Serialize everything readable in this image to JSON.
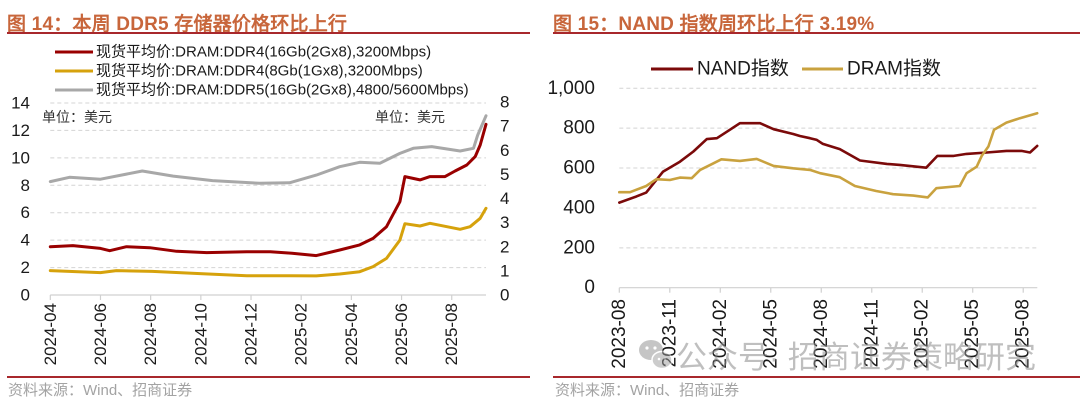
{
  "figures": [
    {
      "title": "图 14：本周 DDR5 存储器价格环比上行",
      "source": "资料来源：Wind、招商证券",
      "unit_left": "单位：美元",
      "unit_right": "单位：美元"
    },
    {
      "title": "图 15：NAND 指数周环比上行 3.19%",
      "source": "资料来源：Wind、招商证券"
    }
  ],
  "watermark": {
    "icon": "wechat-icon",
    "text": "公众号· 招商证券策略研究"
  },
  "chart_data": [
    {
      "type": "line",
      "title": "图 14：本周 DDR5 存储器价格环比上行",
      "xlabel": "",
      "ylabel": "单位：美元",
      "y2label": "单位：美元",
      "grid": true,
      "legend_position": "top-left",
      "xlim": [
        "2024-04-01",
        "2025-09-12"
      ],
      "x_ticks": [
        "2024-04",
        "2024-06",
        "2024-08",
        "2024-10",
        "2024-12",
        "2025-02",
        "2025-04",
        "2025-06",
        "2025-08"
      ],
      "y_left": {
        "lim": [
          0,
          14
        ],
        "ticks": [
          0,
          2,
          4,
          6,
          8,
          10,
          12,
          14
        ],
        "tick_labels": [
          "0",
          "2",
          "4",
          "6",
          "8",
          "10",
          "12",
          "14"
        ]
      },
      "y_right": {
        "lim": [
          0,
          8
        ],
        "ticks": [
          0,
          1,
          2,
          3,
          4,
          5,
          6,
          7,
          8
        ],
        "tick_labels": [
          "0",
          "1",
          "2",
          "3",
          "4",
          "5",
          "6",
          "7",
          "8"
        ]
      },
      "series": [
        {
          "name": "现货平均价:DRAM:DDR4(16Gb(2Gx8),3200Mbps)",
          "axis": "left",
          "color": "#990000",
          "points": [
            [
              "2024-04-01",
              3.52
            ],
            [
              "2024-04-28",
              3.6
            ],
            [
              "2024-05-31",
              3.4
            ],
            [
              "2024-06-12",
              3.23
            ],
            [
              "2024-07-02",
              3.52
            ],
            [
              "2024-07-30",
              3.45
            ],
            [
              "2024-09-02",
              3.19
            ],
            [
              "2024-10-08",
              3.09
            ],
            [
              "2024-11-26",
              3.15
            ],
            [
              "2024-12-24",
              3.16
            ],
            [
              "2025-01-20",
              3.05
            ],
            [
              "2025-02-19",
              2.87
            ],
            [
              "2025-03-17",
              3.28
            ],
            [
              "2025-04-11",
              3.65
            ],
            [
              "2025-04-27",
              4.13
            ],
            [
              "2025-05-13",
              4.98
            ],
            [
              "2025-05-29",
              6.8
            ],
            [
              "2025-06-05",
              8.63
            ],
            [
              "2025-06-23",
              8.39
            ],
            [
              "2025-07-05",
              8.63
            ],
            [
              "2025-07-23",
              8.63
            ],
            [
              "2025-08-05",
              9.04
            ],
            [
              "2025-08-19",
              9.48
            ],
            [
              "2025-08-29",
              10.09
            ],
            [
              "2025-09-05",
              10.94
            ],
            [
              "2025-09-12",
              12.45
            ]
          ]
        },
        {
          "name": "现货平均价:DRAM:DDR4(8Gb(1Gx8),3200Mbps)",
          "axis": "left",
          "color": "#d6a20c",
          "points": [
            [
              "2024-04-01",
              1.78
            ],
            [
              "2024-05-31",
              1.63
            ],
            [
              "2024-06-20",
              1.78
            ],
            [
              "2024-08-03",
              1.72
            ],
            [
              "2024-09-30",
              1.56
            ],
            [
              "2024-11-26",
              1.41
            ],
            [
              "2025-01-17",
              1.4
            ],
            [
              "2025-02-19",
              1.39
            ],
            [
              "2025-03-17",
              1.53
            ],
            [
              "2025-04-11",
              1.7
            ],
            [
              "2025-04-27",
              2.07
            ],
            [
              "2025-05-13",
              2.67
            ],
            [
              "2025-05-29",
              4.0
            ],
            [
              "2025-06-05",
              5.2
            ],
            [
              "2025-06-23",
              5.03
            ],
            [
              "2025-07-05",
              5.23
            ],
            [
              "2025-08-11",
              4.79
            ],
            [
              "2025-08-23",
              4.98
            ],
            [
              "2025-09-05",
              5.59
            ],
            [
              "2025-09-12",
              6.32
            ]
          ]
        },
        {
          "name": "现货平均价:DRAM:DDR5(16Gb(2Gx8),4800/5600Mbps)",
          "axis": "right",
          "color": "#a8a8a8",
          "points": [
            [
              "2024-04-01",
              4.7
            ],
            [
              "2024-04-24",
              4.88
            ],
            [
              "2024-05-31",
              4.8
            ],
            [
              "2024-07-21",
              5.14
            ],
            [
              "2024-08-28",
              4.93
            ],
            [
              "2024-10-15",
              4.74
            ],
            [
              "2024-12-11",
              4.63
            ],
            [
              "2025-01-17",
              4.65
            ],
            [
              "2025-02-19",
              4.97
            ],
            [
              "2025-03-17",
              5.32
            ],
            [
              "2025-04-11",
              5.5
            ],
            [
              "2025-05-05",
              5.46
            ],
            [
              "2025-05-29",
              5.87
            ],
            [
              "2025-06-15",
              6.08
            ],
            [
              "2025-07-07",
              6.15
            ],
            [
              "2025-08-11",
              5.97
            ],
            [
              "2025-08-27",
              6.08
            ],
            [
              "2025-09-02",
              6.63
            ],
            [
              "2025-09-12",
              7.43
            ]
          ]
        }
      ]
    },
    {
      "type": "line",
      "title": "图 15：NAND 指数周环比上行 3.19%",
      "xlabel": "",
      "ylabel": "",
      "grid": true,
      "legend_position": "top",
      "xlim": [
        "2023-08-01",
        "2025-08-26"
      ],
      "x_ticks": [
        "2023-08",
        "2023-11",
        "2024-02",
        "2024-05",
        "2024-08",
        "2024-11",
        "2025-02",
        "2025-05",
        "2025-08"
      ],
      "y_left": {
        "lim": [
          0,
          1000
        ],
        "ticks": [
          0,
          200,
          400,
          600,
          800,
          1000
        ],
        "tick_labels": [
          "0",
          "200",
          "400",
          "600",
          "800",
          "1,000"
        ]
      },
      "series": [
        {
          "name": "NAND指数",
          "axis": "left",
          "color": "#7b0a0a",
          "points": [
            [
              "2023-08-01",
              427
            ],
            [
              "2023-09-01",
              457
            ],
            [
              "2023-09-19",
              477
            ],
            [
              "2023-10-19",
              582
            ],
            [
              "2023-11-19",
              632
            ],
            [
              "2023-12-13",
              683
            ],
            [
              "2024-01-07",
              745
            ],
            [
              "2024-01-25",
              750
            ],
            [
              "2024-02-18",
              792
            ],
            [
              "2024-03-06",
              825
            ],
            [
              "2024-04-12",
              825
            ],
            [
              "2024-05-06",
              795
            ],
            [
              "2024-06-11",
              771
            ],
            [
              "2024-06-23",
              761
            ],
            [
              "2024-07-11",
              750
            ],
            [
              "2024-07-23",
              741
            ],
            [
              "2024-08-04",
              721
            ],
            [
              "2024-09-04",
              695
            ],
            [
              "2024-10-10",
              638
            ],
            [
              "2024-11-28",
              621
            ],
            [
              "2024-12-21",
              616
            ],
            [
              "2025-02-08",
              602
            ],
            [
              "2025-02-28",
              661
            ],
            [
              "2025-03-27",
              661
            ],
            [
              "2025-04-20",
              671
            ],
            [
              "2025-05-26",
              678
            ],
            [
              "2025-07-01",
              686
            ],
            [
              "2025-07-28",
              686
            ],
            [
              "2025-08-13",
              678
            ],
            [
              "2025-08-26",
              711
            ]
          ]
        },
        {
          "name": "DRAM指数",
          "axis": "left",
          "color": "#c9a23f",
          "points": [
            [
              "2023-08-01",
              479
            ],
            [
              "2023-08-20",
              479
            ],
            [
              "2023-09-19",
              510
            ],
            [
              "2023-10-07",
              544
            ],
            [
              "2023-11-01",
              540
            ],
            [
              "2023-11-19",
              552
            ],
            [
              "2023-12-10",
              549
            ],
            [
              "2023-12-25",
              591
            ],
            [
              "2024-01-13",
              616
            ],
            [
              "2024-02-03",
              644
            ],
            [
              "2024-03-06",
              636
            ],
            [
              "2024-04-06",
              646
            ],
            [
              "2024-05-06",
              611
            ],
            [
              "2024-06-11",
              599
            ],
            [
              "2024-07-11",
              591
            ],
            [
              "2024-07-29",
              574
            ],
            [
              "2024-09-04",
              554
            ],
            [
              "2024-10-01",
              510
            ],
            [
              "2024-11-09",
              485
            ],
            [
              "2024-12-09",
              469
            ],
            [
              "2025-01-15",
              462
            ],
            [
              "2025-02-11",
              453
            ],
            [
              "2025-02-26",
              499
            ],
            [
              "2025-04-08",
              510
            ],
            [
              "2025-04-20",
              574
            ],
            [
              "2025-05-08",
              607
            ],
            [
              "2025-05-17",
              661
            ],
            [
              "2025-05-29",
              708
            ],
            [
              "2025-06-09",
              792
            ],
            [
              "2025-07-01",
              828
            ],
            [
              "2025-07-25",
              850
            ],
            [
              "2025-08-26",
              875
            ]
          ]
        }
      ]
    }
  ]
}
